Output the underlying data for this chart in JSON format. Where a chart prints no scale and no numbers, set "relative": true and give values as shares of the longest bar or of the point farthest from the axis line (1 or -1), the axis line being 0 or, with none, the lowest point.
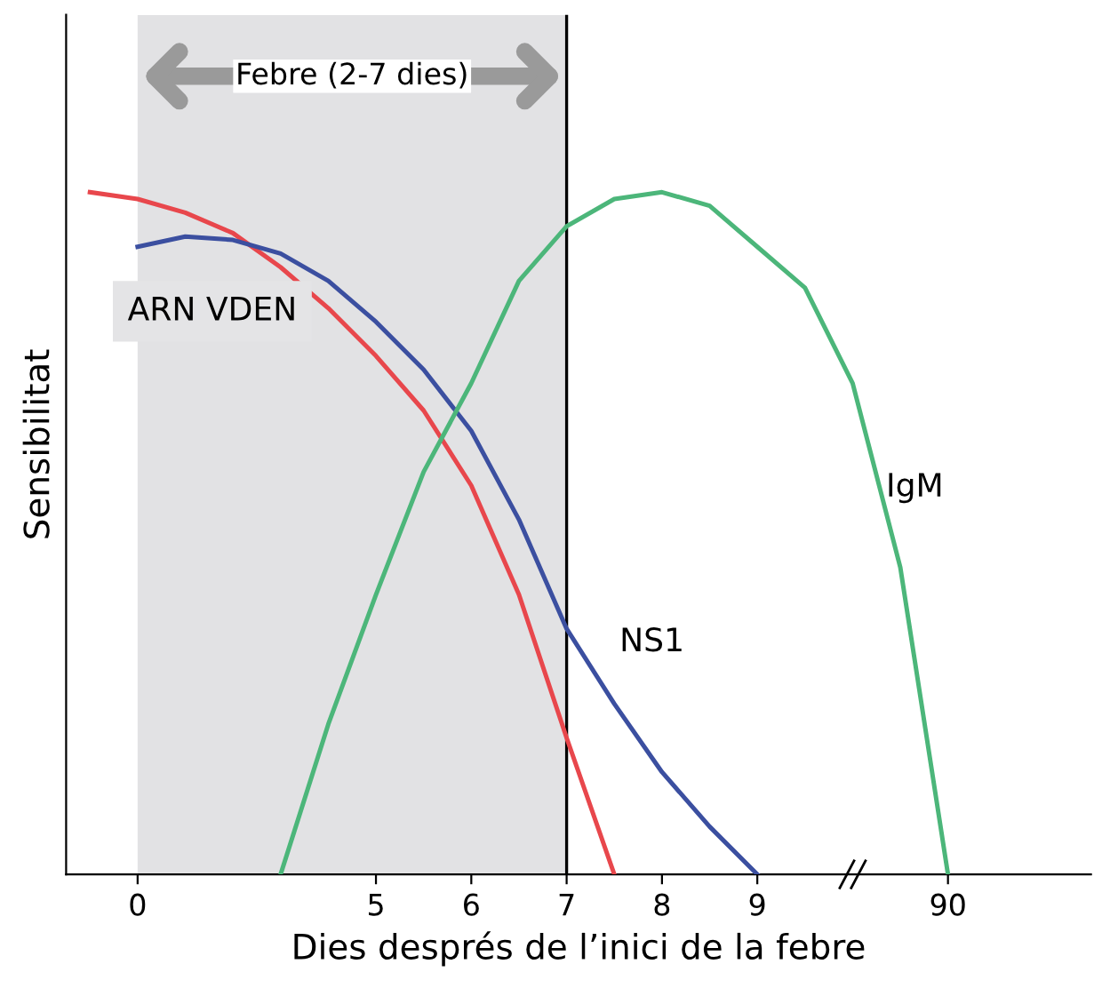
{
  "chart_data": {
    "type": "line",
    "relative": true,
    "xlabel": "Dies després de l’inici de la febre",
    "ylabel": "Sensibilitat",
    "categories": [
      null,
      "0",
      null,
      null,
      null,
      null,
      "5",
      null,
      "6",
      null,
      "7",
      null,
      "8",
      null,
      "9",
      null,
      null,
      null,
      "90"
    ],
    "grid": false,
    "legend": false,
    "marker": "none",
    "line_style": "solid",
    "series": [
      {
        "name": "ARN VDEN",
        "color": "#e8474c",
        "values": [
          1.0,
          0.99,
          0.97,
          0.94,
          0.89,
          0.83,
          0.76,
          0.68,
          0.57,
          0.41,
          0.2,
          0,
          null,
          null,
          null,
          null,
          null,
          null,
          null
        ]
      },
      {
        "name": "NS1",
        "color": "#3b4fa0",
        "values": [
          null,
          0.92,
          0.935,
          0.93,
          0.91,
          0.87,
          0.81,
          0.74,
          0.65,
          0.52,
          0.36,
          0.25,
          0.15,
          0.07,
          0,
          null,
          null,
          null,
          null
        ]
      },
      {
        "name": "IgM",
        "color": "#4cb67a",
        "values": [
          null,
          null,
          null,
          null,
          0,
          0.22,
          0.41,
          0.59,
          0.72,
          0.87,
          0.95,
          0.99,
          1.0,
          0.98,
          0.92,
          0.86,
          0.72,
          0.45,
          0
        ]
      }
    ],
    "ref_lines": [
      {
        "axis": "x",
        "value": "7",
        "color": "#000000",
        "line_style": "solid"
      }
    ],
    "bands": [
      {
        "axis": "x",
        "from": "0",
        "to": "7",
        "label": "Febre (2-7 dies)",
        "color": "#e2e2e4"
      }
    ]
  }
}
